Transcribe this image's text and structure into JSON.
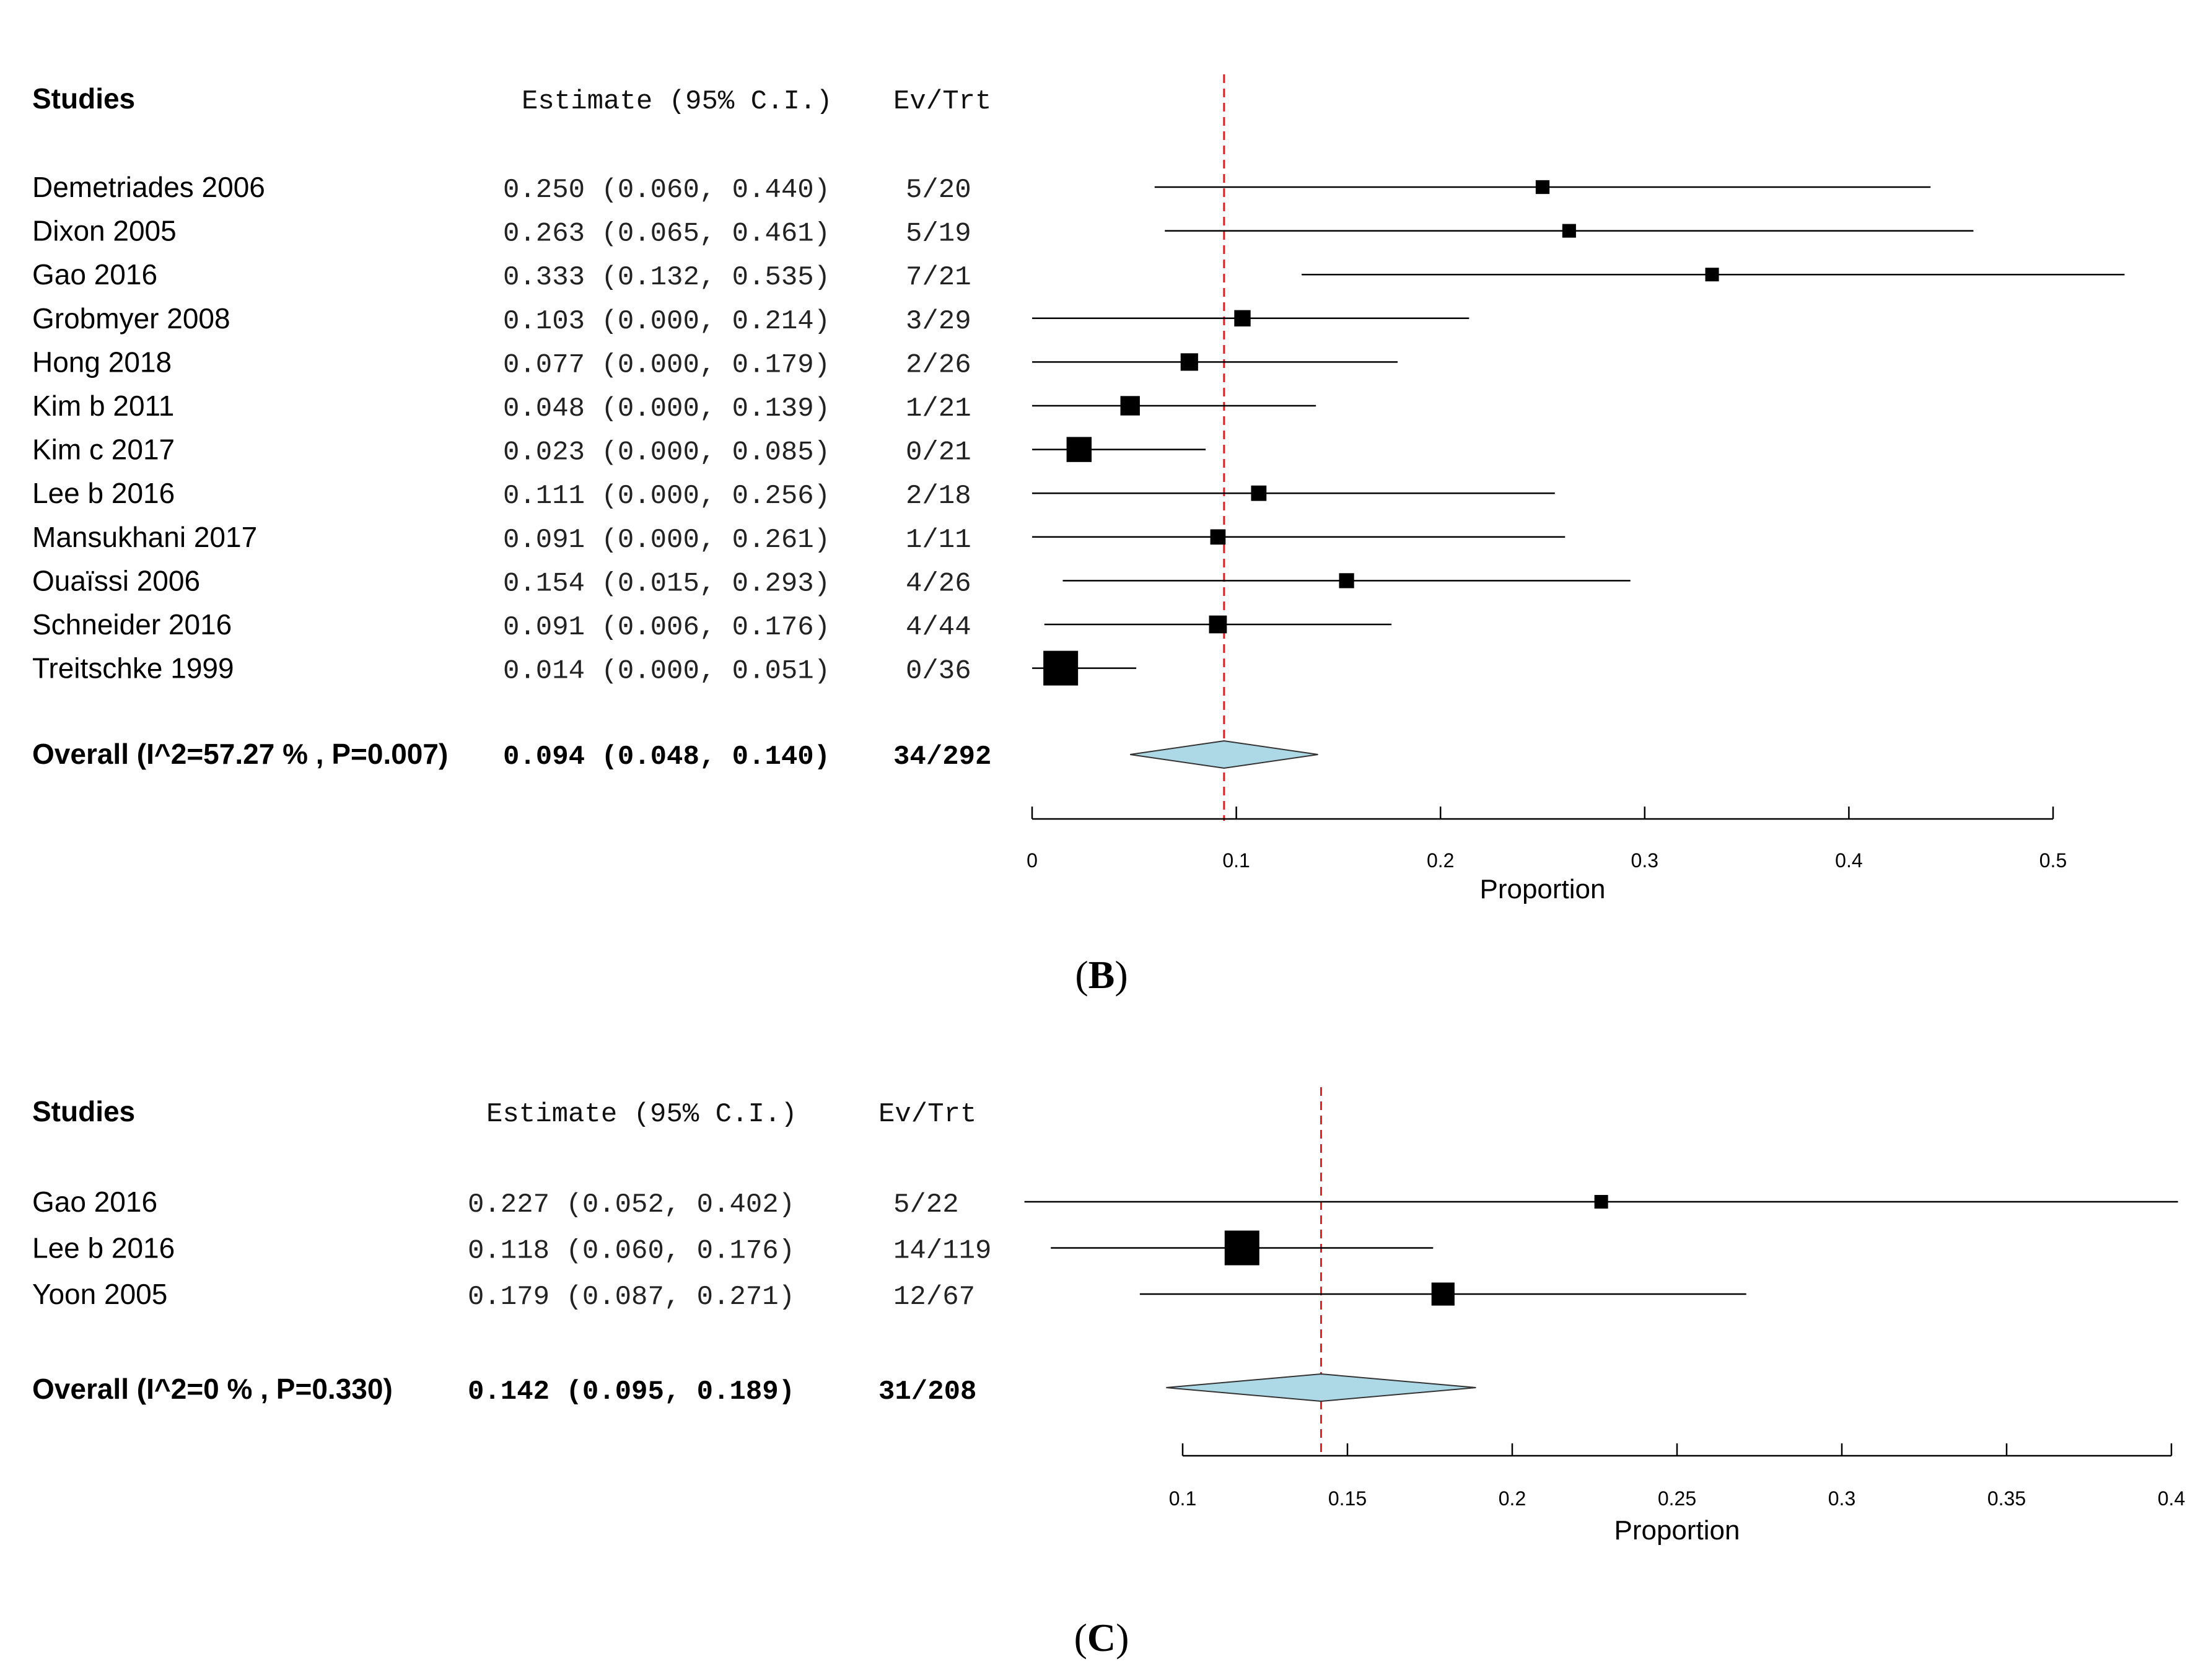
{
  "panels": [
    {
      "id": "B",
      "header": {
        "studies": "Studies",
        "estimate": "Estimate (95% C.I.)",
        "evtrt": "Ev/Trt"
      },
      "rows": [
        {
          "study": "Demetriades 2006",
          "estimate_text": "0.250 (0.060, 0.440)",
          "evtrt": "5/20"
        },
        {
          "study": "Dixon 2005",
          "estimate_text": "0.263 (0.065, 0.461)",
          "evtrt": "5/19"
        },
        {
          "study": "Gao 2016",
          "estimate_text": "0.333 (0.132, 0.535)",
          "evtrt": "7/21"
        },
        {
          "study": "Grobmyer 2008",
          "estimate_text": "0.103 (0.000, 0.214)",
          "evtrt": "3/29"
        },
        {
          "study": "Hong 2018",
          "estimate_text": "0.077 (0.000, 0.179)",
          "evtrt": "2/26"
        },
        {
          "study": "Kim b 2011",
          "estimate_text": "0.048 (0.000, 0.139)",
          "evtrt": "1/21"
        },
        {
          "study": "Kim c 2017",
          "estimate_text": "0.023 (0.000, 0.085)",
          "evtrt": "0/21"
        },
        {
          "study": "Lee b 2016",
          "estimate_text": "0.111 (0.000, 0.256)",
          "evtrt": "2/18"
        },
        {
          "study": "Mansukhani 2017",
          "estimate_text": "0.091 (0.000, 0.261)",
          "evtrt": "1/11"
        },
        {
          "study": "Ouaïssi 2006",
          "estimate_text": "0.154 (0.015, 0.293)",
          "evtrt": "4/26"
        },
        {
          "study": "Schneider 2016",
          "estimate_text": "0.091 (0.006, 0.176)",
          "evtrt": "4/44"
        },
        {
          "study": "Treitschke 1999",
          "estimate_text": "0.014 (0.000, 0.051)",
          "evtrt": "0/36"
        }
      ],
      "overall": {
        "label": "Overall (I^2=57.27 % , P=0.007)",
        "estimate_text": "0.094 (0.048, 0.140)",
        "evtrt": "34/292"
      },
      "axis_label": "Proportion",
      "tick_labels": [
        "0",
        "0.1",
        "0.2",
        "0.3",
        "0.4",
        "0.5"
      ],
      "caption_letter": "B"
    },
    {
      "id": "C",
      "header": {
        "studies": "Studies",
        "estimate": "Estimate (95% C.I.)",
        "evtrt": "Ev/Trt"
      },
      "rows": [
        {
          "study": "Gao 2016",
          "estimate_text": "0.227 (0.052, 0.402)",
          "evtrt": "5/22"
        },
        {
          "study": "Lee b 2016",
          "estimate_text": "0.118 (0.060, 0.176)",
          "evtrt": "14/119"
        },
        {
          "study": "Yoon 2005",
          "estimate_text": "0.179 (0.087, 0.271)",
          "evtrt": "12/67"
        }
      ],
      "overall": {
        "label": "Overall (I^2=0 % , P=0.330)",
        "estimate_text": "0.142 (0.095, 0.189)",
        "evtrt": "31/208"
      },
      "axis_label": "Proportion",
      "tick_labels": [
        "0.1",
        "0.15",
        "0.2",
        "0.25",
        "0.3",
        "0.35",
        "0.4"
      ],
      "caption_letter": "C"
    }
  ],
  "chart_data": [
    {
      "type": "forest",
      "panel": "B",
      "xlabel": "Proportion",
      "xlim": [
        0,
        0.5
      ],
      "ticks": [
        0,
        0.1,
        0.2,
        0.3,
        0.4,
        0.5
      ],
      "reference_line": 0.094,
      "reference_line_color": "#e02020",
      "diamond_color": "#add8e6",
      "studies": [
        {
          "name": "Demetriades 2006",
          "estimate": 0.25,
          "lower": 0.06,
          "upper": 0.44,
          "events": 5,
          "total": 20
        },
        {
          "name": "Dixon 2005",
          "estimate": 0.263,
          "lower": 0.065,
          "upper": 0.461,
          "events": 5,
          "total": 19
        },
        {
          "name": "Gao 2016",
          "estimate": 0.333,
          "lower": 0.132,
          "upper": 0.535,
          "events": 7,
          "total": 21
        },
        {
          "name": "Grobmyer 2008",
          "estimate": 0.103,
          "lower": 0.0,
          "upper": 0.214,
          "events": 3,
          "total": 29
        },
        {
          "name": "Hong 2018",
          "estimate": 0.077,
          "lower": 0.0,
          "upper": 0.179,
          "events": 2,
          "total": 26
        },
        {
          "name": "Kim b 2011",
          "estimate": 0.048,
          "lower": 0.0,
          "upper": 0.139,
          "events": 1,
          "total": 21
        },
        {
          "name": "Kim c 2017",
          "estimate": 0.023,
          "lower": 0.0,
          "upper": 0.085,
          "events": 0,
          "total": 21
        },
        {
          "name": "Lee b 2016",
          "estimate": 0.111,
          "lower": 0.0,
          "upper": 0.256,
          "events": 2,
          "total": 18
        },
        {
          "name": "Mansukhani 2017",
          "estimate": 0.091,
          "lower": 0.0,
          "upper": 0.261,
          "events": 1,
          "total": 11
        },
        {
          "name": "Ouaïssi 2006",
          "estimate": 0.154,
          "lower": 0.015,
          "upper": 0.293,
          "events": 4,
          "total": 26
        },
        {
          "name": "Schneider 2016",
          "estimate": 0.091,
          "lower": 0.006,
          "upper": 0.176,
          "events": 4,
          "total": 44
        },
        {
          "name": "Treitschke 1999",
          "estimate": 0.014,
          "lower": 0.0,
          "upper": 0.051,
          "events": 0,
          "total": 36
        }
      ],
      "overall": {
        "estimate": 0.094,
        "lower": 0.048,
        "upper": 0.14,
        "events": 34,
        "total": 292,
        "I2": 57.27,
        "P": 0.007
      }
    },
    {
      "type": "forest",
      "panel": "C",
      "xlabel": "Proportion",
      "xlim": [
        0.1,
        0.4
      ],
      "ticks": [
        0.1,
        0.15,
        0.2,
        0.25,
        0.3,
        0.35,
        0.4
      ],
      "reference_line": 0.142,
      "reference_line_color": "#e02020",
      "diamond_color": "#add8e6",
      "studies": [
        {
          "name": "Gao 2016",
          "estimate": 0.227,
          "lower": 0.052,
          "upper": 0.402,
          "events": 5,
          "total": 22
        },
        {
          "name": "Lee b 2016",
          "estimate": 0.118,
          "lower": 0.06,
          "upper": 0.176,
          "events": 14,
          "total": 119
        },
        {
          "name": "Yoon 2005",
          "estimate": 0.179,
          "lower": 0.087,
          "upper": 0.271,
          "events": 12,
          "total": 67
        }
      ],
      "overall": {
        "estimate": 0.142,
        "lower": 0.095,
        "upper": 0.189,
        "events": 31,
        "total": 208,
        "I2": 0,
        "P": 0.33
      }
    }
  ]
}
